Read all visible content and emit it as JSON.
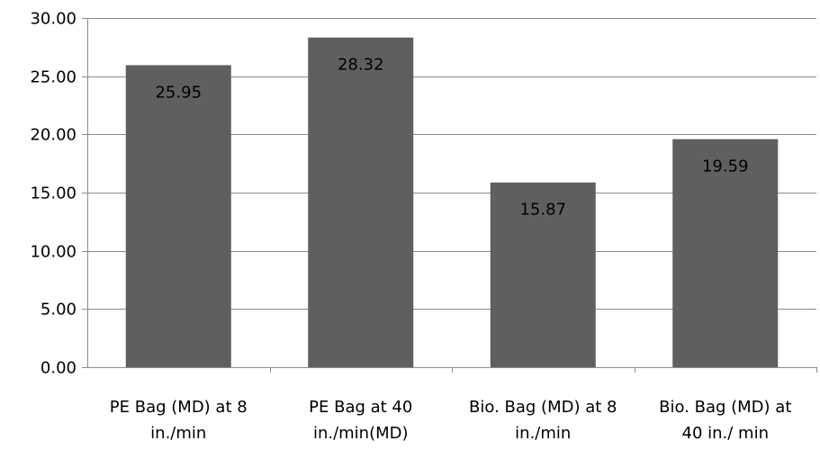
{
  "chart_data": {
    "type": "bar",
    "title": "",
    "xlabel": "",
    "ylabel": "",
    "ylim": [
      0,
      30
    ],
    "y_ticks": [
      "0.00",
      "5.00",
      "10.00",
      "15.00",
      "20.00",
      "25.00",
      "30.00"
    ],
    "grid": true,
    "legend": "none",
    "categories": [
      [
        "PE Bag (MD) at 8",
        "in./min"
      ],
      [
        "PE Bag at 40",
        "in./min(MD)"
      ],
      [
        "Bio. Bag (MD) at 8",
        "in./min"
      ],
      [
        "Bio. Bag (MD) at",
        "40 in./ min"
      ]
    ],
    "values": [
      25.95,
      28.32,
      15.87,
      19.59
    ],
    "data_labels": [
      "25.95",
      "28.32",
      "15.87",
      "19.59"
    ],
    "bar_color": "#5f5f5f",
    "grid_color": "#8c8c8c"
  }
}
